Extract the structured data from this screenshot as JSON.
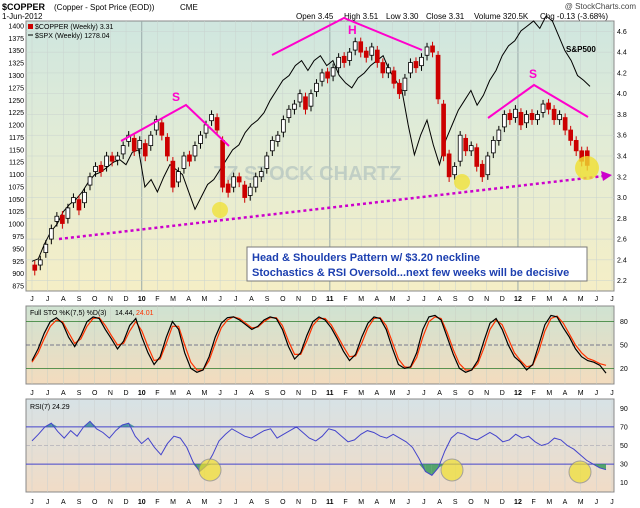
{
  "header": {
    "symbol": "$COPPER",
    "description": "(Copper - Spot Price (EOD))",
    "exchange": "CME",
    "credit": "@ StockCharts.com",
    "date": "1-Jun-2012",
    "open": "Open 3.45",
    "high": "High 3.51",
    "low": "Low 3.30",
    "close": "Close 3.31",
    "volume": "Volume 320.5K",
    "chg": "Chg -0.13 (-3.68%)"
  },
  "legend": {
    "copper": "$COPPER (Weekly) 3.31",
    "spx": "$SPX (Weekly) 1278.04",
    "sto_label": "Full STO %K(7,5) %D(3)",
    "sto_k": "14.44,",
    "sto_d": "24.01",
    "rsi": "RSI(7) 24.29"
  },
  "annotations": {
    "s_left": "S",
    "h": "H",
    "s_right": "S",
    "sp500": "S&P500",
    "watermark": "TZ STOCK CHARTZ",
    "box_line1": "Head & Shoulders Pattern w/ $3.20 neckline",
    "box_line2": "Stochastics & RSI Oversold...next few weeks will be decisive"
  },
  "colors": {
    "up_bar": "#000000",
    "down_bar": "#cc0000",
    "spx_line": "#000000",
    "pattern": "#ff00cc",
    "neckline": "#cc00cc",
    "circle": "#f0e030",
    "sto_k": "#000000",
    "sto_d": "#ff3300",
    "rsi_line": "#4444cc",
    "rsi_fill": "#3a8a9a"
  },
  "chart_data": [
    {
      "type": "candlestick",
      "title": "$COPPER (Weekly)",
      "x_ticks": [
        "J",
        "J",
        "A",
        "S",
        "O",
        "N",
        "D",
        "10",
        "F",
        "M",
        "A",
        "M",
        "J",
        "J",
        "A",
        "S",
        "O",
        "N",
        "D",
        "11",
        "F",
        "M",
        "A",
        "M",
        "J",
        "J",
        "A",
        "S",
        "O",
        "N",
        "D",
        "12",
        "F",
        "M",
        "A",
        "M",
        "J",
        "J"
      ],
      "y_left_ticks": [
        875,
        900,
        925,
        950,
        975,
        1000,
        1025,
        1050,
        1075,
        1100,
        1125,
        1150,
        1175,
        1200,
        1225,
        1250,
        1275,
        1300,
        1325,
        1350,
        1375,
        1400
      ],
      "y_right_ticks": [
        2.2,
        2.4,
        2.6,
        2.8,
        3.0,
        3.2,
        3.4,
        3.6,
        3.8,
        4.0,
        4.2,
        4.4,
        4.6
      ],
      "y_right_range": [
        2.1,
        4.7
      ],
      "series": [
        {
          "name": "$COPPER",
          "close": [
            2.3,
            2.4,
            2.55,
            2.7,
            2.82,
            2.75,
            2.9,
            3.0,
            2.88,
            3.05,
            3.2,
            3.3,
            3.25,
            3.4,
            3.35,
            3.4,
            3.5,
            3.6,
            3.45,
            3.55,
            3.4,
            3.6,
            3.75,
            3.6,
            3.4,
            3.1,
            3.25,
            3.4,
            3.35,
            3.5,
            3.6,
            3.7,
            3.8,
            3.65,
            3.1,
            3.05,
            3.2,
            3.15,
            3.0,
            3.1,
            3.2,
            3.25,
            3.4,
            3.55,
            3.6,
            3.75,
            3.85,
            3.9,
            4.0,
            3.85,
            4.0,
            4.1,
            4.2,
            4.15,
            4.25,
            4.35,
            4.3,
            4.4,
            4.5,
            4.4,
            4.35,
            4.45,
            4.3,
            4.2,
            4.25,
            4.1,
            4.0,
            4.15,
            4.3,
            4.25,
            4.35,
            4.45,
            4.4,
            3.95,
            3.4,
            3.2,
            3.3,
            3.6,
            3.45,
            3.5,
            3.3,
            3.2,
            3.4,
            3.55,
            3.65,
            3.8,
            3.75,
            3.85,
            3.7,
            3.8,
            3.75,
            3.8,
            3.9,
            3.85,
            3.75,
            3.8,
            3.65,
            3.55,
            3.45,
            3.35,
            3.31
          ],
          "open_offset": [
            0.05,
            -0.05,
            -0.08,
            -0.1,
            -0.05,
            0.08,
            -0.1,
            -0.05,
            0.1,
            -0.1,
            -0.08,
            -0.05,
            0.06,
            -0.1,
            0.05,
            -0.04,
            -0.08,
            -0.06,
            0.12,
            -0.08,
            0.12,
            -0.1,
            -0.1,
            0.12,
            0.18,
            0.25,
            -0.1,
            -0.12,
            0.06,
            -0.1,
            -0.08,
            -0.08,
            -0.06,
            0.12,
            0.45,
            0.08,
            -0.1,
            0.05,
            0.12,
            -0.08,
            -0.1,
            -0.05,
            -0.12,
            -0.1,
            -0.06,
            -0.12,
            -0.08,
            -0.05,
            -0.08,
            0.12,
            -0.12,
            -0.08,
            -0.08,
            0.06,
            -0.08,
            -0.1,
            0.06,
            -0.08,
            -0.08,
            0.1,
            0.06,
            -0.08,
            0.12,
            0.1,
            -0.05,
            0.12,
            0.1,
            -0.12,
            -0.1,
            0.06,
            -0.08,
            -0.08,
            0.06,
            0.42,
            0.5,
            0.22,
            -0.08,
            -0.25,
            0.12,
            -0.05,
            0.18,
            0.12,
            -0.18,
            -0.12,
            -0.1,
            -0.12,
            0.06,
            -0.08,
            0.12,
            -0.08,
            0.06,
            -0.05,
            -0.08,
            0.06,
            0.1,
            -0.05,
            0.12,
            0.1,
            0.1,
            0.1,
            0.14
          ]
        },
        {
          "name": "S&P500",
          "values": [
            925,
            930,
            960,
            985,
            1000,
            1025,
            1040,
            1050,
            1065,
            1085,
            1100,
            1105,
            1115,
            1125,
            1130,
            1120,
            1145,
            1150,
            1075,
            1090,
            1065,
            1095,
            1120,
            1110,
            1100,
            1065,
            1030,
            1055,
            1080,
            1090,
            1110,
            1130,
            1150,
            1160,
            1185,
            1200,
            1210,
            1225,
            1250,
            1270,
            1290,
            1300,
            1320,
            1330,
            1310,
            1330,
            1340,
            1320,
            1330,
            1300,
            1285,
            1275,
            1295,
            1305,
            1320,
            1330,
            1340,
            1310,
            1290,
            1270,
            1200,
            1140,
            1180,
            1210,
            1160,
            1120,
            1170,
            1200,
            1230,
            1250,
            1270,
            1240,
            1260,
            1290,
            1310,
            1340,
            1360,
            1370,
            1390,
            1400,
            1410,
            1395,
            1420,
            1410,
            1380,
            1350,
            1330,
            1300,
            1290,
            1278
          ]
        }
      ]
    },
    {
      "type": "line",
      "title": "Full STO %K(7,5) %D(3)",
      "y_ticks": [
        20,
        50,
        80
      ],
      "ylim": [
        0,
        100
      ],
      "series": [
        {
          "name": "%K",
          "values": [
            30,
            45,
            65,
            80,
            85,
            78,
            60,
            48,
            62,
            80,
            86,
            84,
            70,
            58,
            45,
            55,
            75,
            84,
            60,
            40,
            25,
            35,
            60,
            80,
            70,
            40,
            20,
            15,
            18,
            35,
            60,
            78,
            85,
            86,
            82,
            76,
            70,
            74,
            82,
            86,
            84,
            70,
            48,
            32,
            40,
            62,
            80,
            86,
            82,
            72,
            58,
            42,
            30,
            38,
            60,
            78,
            86,
            84,
            70,
            46,
            25,
            20,
            22,
            40,
            70,
            86,
            88,
            82,
            60,
            38,
            20,
            15,
            18,
            30,
            55,
            78,
            84,
            70,
            50,
            35,
            28,
            18,
            25,
            50,
            76,
            88,
            86,
            72,
            60,
            45,
            35,
            30,
            28,
            24,
            14
          ]
        },
        {
          "name": "%D",
          "values": [
            28,
            40,
            58,
            74,
            82,
            80,
            66,
            52,
            58,
            74,
            84,
            85,
            75,
            62,
            50,
            52,
            68,
            80,
            68,
            48,
            30,
            32,
            52,
            74,
            74,
            50,
            28,
            18,
            18,
            30,
            52,
            72,
            82,
            86,
            84,
            78,
            72,
            73,
            80,
            85,
            85,
            75,
            55,
            38,
            38,
            55,
            75,
            84,
            84,
            76,
            62,
            48,
            35,
            36,
            52,
            72,
            84,
            85,
            75,
            54,
            32,
            22,
            21,
            34,
            60,
            80,
            86,
            84,
            66,
            44,
            26,
            18,
            18,
            26,
            46,
            70,
            82,
            76,
            58,
            40,
            30,
            22,
            24,
            42,
            68,
            84,
            87,
            78,
            64,
            50,
            40,
            33,
            30,
            26,
            24
          ]
        }
      ]
    },
    {
      "type": "line",
      "title": "RSI(7)",
      "y_ticks": [
        10,
        30,
        50,
        70,
        90
      ],
      "ylim": [
        0,
        100
      ],
      "series": [
        {
          "name": "RSI(7)",
          "values": [
            55,
            62,
            70,
            74,
            65,
            58,
            66,
            60,
            70,
            76,
            68,
            64,
            58,
            66,
            72,
            74,
            60,
            52,
            58,
            48,
            40,
            52,
            60,
            58,
            48,
            32,
            22,
            28,
            40,
            55,
            62,
            68,
            64,
            60,
            58,
            62,
            66,
            68,
            58,
            62,
            66,
            70,
            64,
            58,
            55,
            60,
            68,
            66,
            60,
            54,
            56,
            62,
            66,
            64,
            60,
            58,
            62,
            58,
            54,
            48,
            36,
            22,
            18,
            26,
            44,
            58,
            64,
            62,
            58,
            56,
            60,
            64,
            60,
            54,
            56,
            62,
            58,
            60,
            54,
            50,
            52,
            58,
            56,
            50,
            46,
            40,
            34,
            30,
            26,
            24
          ]
        }
      ]
    }
  ]
}
